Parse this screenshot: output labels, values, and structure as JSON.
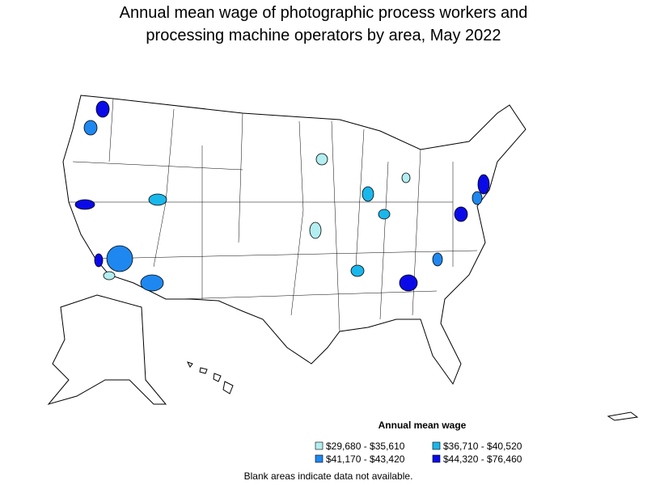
{
  "title": [
    "Annual mean wage of photographic process workers and",
    "processing machine operators by area, May 2022"
  ],
  "legend": {
    "title": "Annual mean wage",
    "items": [
      {
        "label": "$29,680 - $35,610",
        "color": "#b3eef0"
      },
      {
        "label": "$36,710 - $40,520",
        "color": "#1ab7eb"
      },
      {
        "label": "$41,170 - $43,420",
        "color": "#1e88f0"
      },
      {
        "label": "$44,320 - $76,460",
        "color": "#0a0ae8"
      }
    ]
  },
  "note": "Blank areas indicate data not available."
}
